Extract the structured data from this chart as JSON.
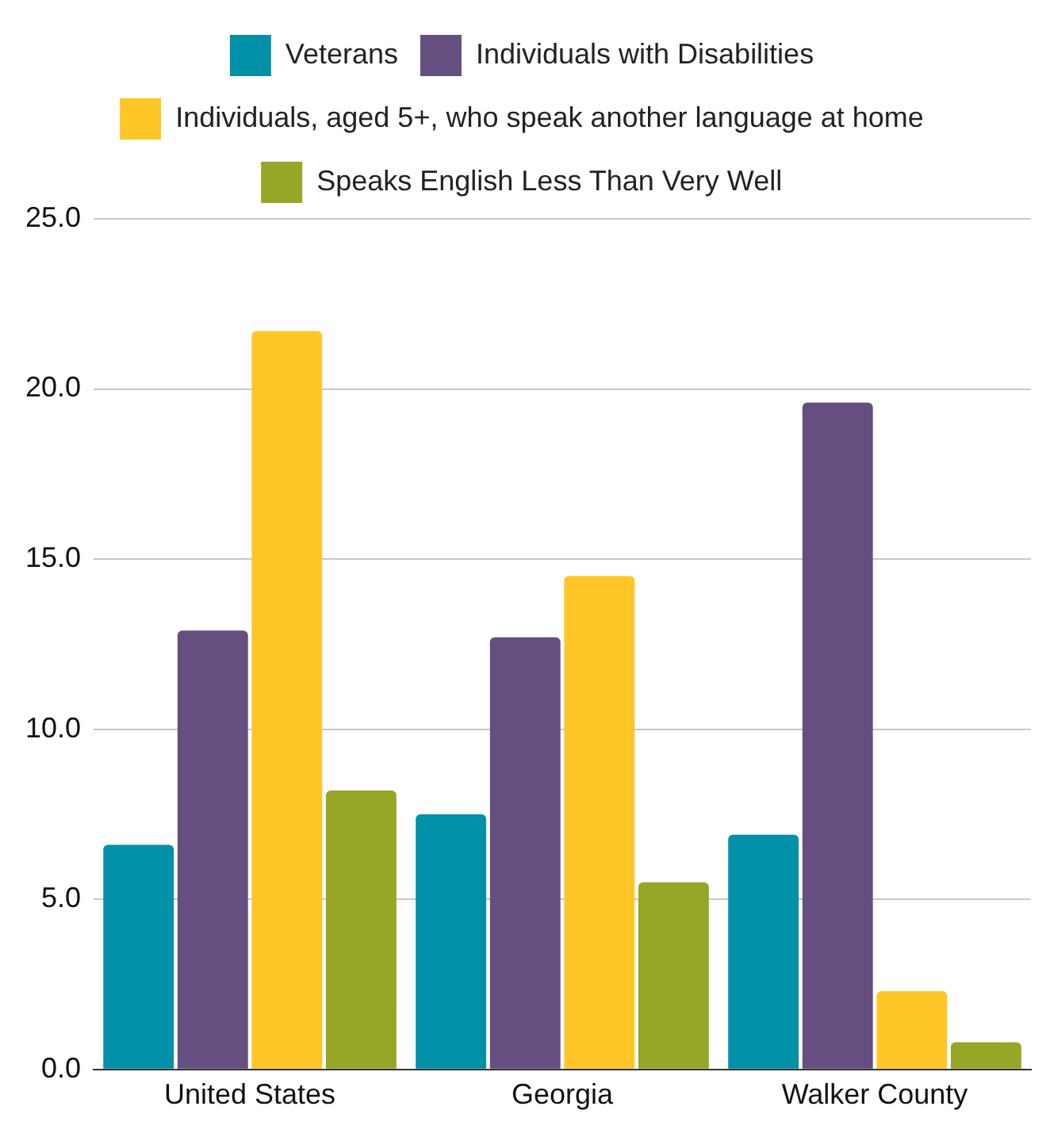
{
  "chart_data": {
    "type": "bar",
    "categories": [
      "United States",
      "Georgia",
      "Walker County"
    ],
    "series": [
      {
        "name": "Veterans",
        "color": "#0091a8",
        "values": [
          6.6,
          7.5,
          6.9
        ]
      },
      {
        "name": "Individuals with Disabilities",
        "color": "#654f80",
        "values": [
          12.9,
          12.7,
          19.6
        ]
      },
      {
        "name": "Individuals, aged 5+, who speak another language at home",
        "color": "#ffc628",
        "values": [
          21.7,
          14.5,
          2.3
        ]
      },
      {
        "name": "Speaks English Less Than Very Well",
        "color": "#97a626",
        "values": [
          8.2,
          5.5,
          0.8
        ]
      }
    ],
    "ylim": [
      0,
      25
    ],
    "yticks": [
      {
        "value": 0,
        "label": "0.0"
      },
      {
        "value": 5,
        "label": "5.0"
      },
      {
        "value": 10,
        "label": "10.0"
      },
      {
        "value": 15,
        "label": "15.0"
      },
      {
        "value": 20,
        "label": "20.0"
      },
      {
        "value": 25,
        "label": "25.0"
      }
    ],
    "grid": "y",
    "legend": "top"
  }
}
